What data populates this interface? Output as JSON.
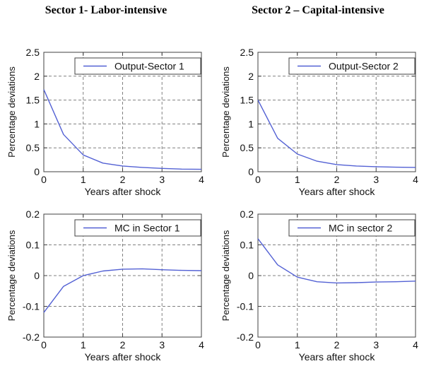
{
  "titles": {
    "left": "Sector 1- Labor-intensive",
    "right": "Sector 2 – Capital-intensive"
  },
  "colors": {
    "line": "#5361d4",
    "grid": "#808080",
    "box": "#404040",
    "text": "#111111",
    "legend_bg": "#ffffff"
  },
  "chart_data": [
    {
      "type": "line",
      "panel": "top-left",
      "legend": "Output-Sector 1",
      "xlabel": "Years after shock",
      "ylabel": "Percentage deviations",
      "xlim": [
        0,
        4
      ],
      "ylim": [
        0,
        2.5
      ],
      "xticks": [
        0,
        1,
        2,
        3,
        4
      ],
      "xticklabels": [
        "0",
        "1",
        "2",
        "3",
        "4"
      ],
      "yticks": [
        0,
        0.5,
        1,
        1.5,
        2,
        2.5
      ],
      "yticklabels": [
        "0",
        "0.5",
        "1",
        "1.5",
        "2",
        "2.5"
      ],
      "grid": true,
      "legend_position": "upper right",
      "x": [
        0,
        0.5,
        1,
        1.5,
        2,
        2.5,
        3,
        3.5,
        4
      ],
      "y": [
        1.72,
        0.78,
        0.35,
        0.18,
        0.12,
        0.09,
        0.07,
        0.055,
        0.05
      ]
    },
    {
      "type": "line",
      "panel": "top-right",
      "legend": "Output-Sector 2",
      "xlabel": "Years after shock",
      "ylabel": "Percentage deviations",
      "xlim": [
        0,
        4
      ],
      "ylim": [
        0,
        2.5
      ],
      "xticks": [
        0,
        1,
        2,
        3,
        4
      ],
      "xticklabels": [
        "0",
        "1",
        "2",
        "3",
        "4"
      ],
      "yticks": [
        0,
        0.5,
        1,
        1.5,
        2,
        2.5
      ],
      "yticklabels": [
        "0",
        "0.5",
        "1",
        "1.5",
        "2",
        "2.5"
      ],
      "grid": true,
      "legend_position": "upper right",
      "x": [
        0,
        0.5,
        1,
        1.5,
        2,
        2.5,
        3,
        3.5,
        4
      ],
      "y": [
        1.5,
        0.7,
        0.37,
        0.22,
        0.15,
        0.12,
        0.105,
        0.095,
        0.09
      ]
    },
    {
      "type": "line",
      "panel": "bottom-left",
      "legend": "MC in Sector 1",
      "xlabel": "Years after shock",
      "ylabel": "Percentage deviations",
      "xlim": [
        0,
        4
      ],
      "ylim": [
        -0.2,
        0.2
      ],
      "xticks": [
        0,
        1,
        2,
        3,
        4
      ],
      "xticklabels": [
        "0",
        "1",
        "2",
        "3",
        "4"
      ],
      "yticks": [
        -0.2,
        -0.1,
        0,
        0.1,
        0.2
      ],
      "yticklabels": [
        "-0.2",
        "-0.1",
        "0",
        "0.1",
        "0.2"
      ],
      "grid": true,
      "legend_position": "upper right",
      "x": [
        0,
        0.5,
        1,
        1.5,
        2,
        2.5,
        3,
        3.5,
        4
      ],
      "y": [
        -0.12,
        -0.035,
        0,
        0.015,
        0.021,
        0.022,
        0.019,
        0.017,
        0.016
      ]
    },
    {
      "type": "line",
      "panel": "bottom-right",
      "legend": "MC in sector 2",
      "xlabel": "Years after shock",
      "ylabel": "Percentage deviations",
      "xlim": [
        0,
        4
      ],
      "ylim": [
        -0.2,
        0.2
      ],
      "xticks": [
        0,
        1,
        2,
        3,
        4
      ],
      "xticklabels": [
        "0",
        "1",
        "2",
        "3",
        "4"
      ],
      "yticks": [
        -0.2,
        -0.1,
        0,
        0.1,
        0.2
      ],
      "yticklabels": [
        "-0.2",
        "-0.1",
        "0",
        "0.1",
        "0.2"
      ],
      "grid": true,
      "legend_position": "upper right",
      "x": [
        0,
        0.5,
        1,
        1.5,
        2,
        2.5,
        3,
        3.5,
        4
      ],
      "y": [
        0.12,
        0.035,
        -0.005,
        -0.02,
        -0.024,
        -0.023,
        -0.021,
        -0.02,
        -0.018
      ]
    }
  ]
}
